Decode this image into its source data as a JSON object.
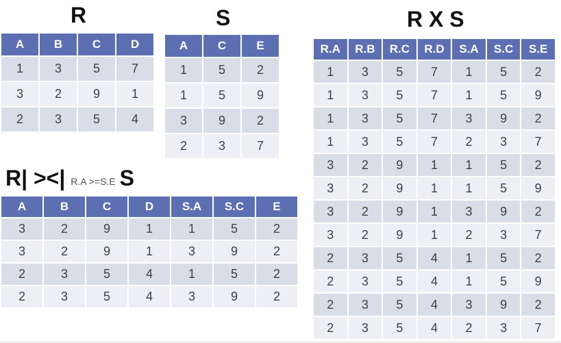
{
  "r": {
    "title": "R",
    "columns": [
      "A",
      "B",
      "C",
      "D"
    ],
    "rows": [
      [
        "1",
        "3",
        "5",
        "7"
      ],
      [
        "3",
        "2",
        "9",
        "1"
      ],
      [
        "2",
        "3",
        "5",
        "4"
      ]
    ]
  },
  "s": {
    "title": "S",
    "columns": [
      "A",
      "C",
      "E"
    ],
    "rows": [
      [
        "1",
        "5",
        "2"
      ],
      [
        "1",
        "5",
        "9"
      ],
      [
        "3",
        "9",
        "2"
      ],
      [
        "2",
        "3",
        "7"
      ]
    ]
  },
  "product": {
    "title": "R X S",
    "columns": [
      "R.A",
      "R.B",
      "R.C",
      "R.D",
      "S.A",
      "S.C",
      "S.E"
    ],
    "rows": [
      [
        "1",
        "3",
        "5",
        "7",
        "1",
        "5",
        "2"
      ],
      [
        "1",
        "3",
        "5",
        "7",
        "1",
        "5",
        "9"
      ],
      [
        "1",
        "3",
        "5",
        "7",
        "3",
        "9",
        "2"
      ],
      [
        "1",
        "3",
        "5",
        "7",
        "2",
        "3",
        "7"
      ],
      [
        "3",
        "2",
        "9",
        "1",
        "1",
        "5",
        "2"
      ],
      [
        "3",
        "2",
        "9",
        "1",
        "1",
        "5",
        "9"
      ],
      [
        "3",
        "2",
        "9",
        "1",
        "3",
        "9",
        "2"
      ],
      [
        "3",
        "2",
        "9",
        "1",
        "2",
        "3",
        "7"
      ],
      [
        "2",
        "3",
        "5",
        "4",
        "1",
        "5",
        "2"
      ],
      [
        "2",
        "3",
        "5",
        "4",
        "1",
        "5",
        "9"
      ],
      [
        "2",
        "3",
        "5",
        "4",
        "3",
        "9",
        "2"
      ],
      [
        "2",
        "3",
        "5",
        "4",
        "2",
        "3",
        "7"
      ]
    ]
  },
  "join": {
    "left": "R",
    "symbol": "| ><|",
    "condition": "R.A >=S.E",
    "right": "S",
    "columns": [
      "A",
      "B",
      "C",
      "D",
      "S.A",
      "S.C",
      "E"
    ],
    "rows": [
      [
        "3",
        "2",
        "9",
        "1",
        "1",
        "5",
        "2"
      ],
      [
        "3",
        "2",
        "9",
        "1",
        "3",
        "9",
        "2"
      ],
      [
        "2",
        "3",
        "5",
        "4",
        "1",
        "5",
        "2"
      ],
      [
        "2",
        "3",
        "5",
        "4",
        "3",
        "9",
        "2"
      ]
    ]
  },
  "colors": {
    "header_bg": "#5b6fb2",
    "row_dark": "#d9dde8",
    "row_light": "#edeff4"
  }
}
